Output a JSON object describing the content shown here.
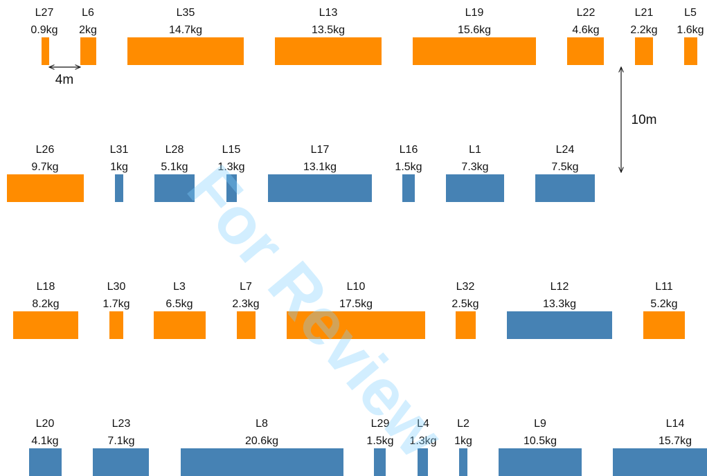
{
  "watermark": "For Review",
  "annotations": {
    "horizontal_spacing": "4m",
    "vertical_spacing": "10m"
  },
  "rows": [
    {
      "nodes": [
        {
          "label": "L27",
          "weight": "0.9kg",
          "color": "#ff8c00"
        },
        {
          "label": "L6",
          "weight": "2kg",
          "color": "#ff8c00"
        },
        {
          "label": "L35",
          "weight": "14.7kg",
          "color": "#ff8c00"
        },
        {
          "label": "L13",
          "weight": "13.5kg",
          "color": "#ff8c00"
        },
        {
          "label": "L19",
          "weight": "15.6kg",
          "color": "#ff8c00"
        },
        {
          "label": "L22",
          "weight": "4.6kg",
          "color": "#ff8c00"
        },
        {
          "label": "L21",
          "weight": "2.2kg",
          "color": "#ff8c00"
        },
        {
          "label": "L5",
          "weight": "1.6kg",
          "color": "#ff8c00"
        }
      ]
    },
    {
      "nodes": [
        {
          "label": "L26",
          "weight": "9.7kg",
          "color": "#ff8c00"
        },
        {
          "label": "L31",
          "weight": "1kg",
          "color": "#4682b4"
        },
        {
          "label": "L28",
          "weight": "5.1kg",
          "color": "#4682b4"
        },
        {
          "label": "L15",
          "weight": "1.3kg",
          "color": "#4682b4"
        },
        {
          "label": "L17",
          "weight": "13.1kg",
          "color": "#4682b4"
        },
        {
          "label": "L16",
          "weight": "1.5kg",
          "color": "#4682b4"
        },
        {
          "label": "L1",
          "weight": "7.3kg",
          "color": "#4682b4"
        },
        {
          "label": "L24",
          "weight": "7.5kg",
          "color": "#4682b4"
        }
      ]
    },
    {
      "nodes": [
        {
          "label": "L18",
          "weight": "8.2kg",
          "color": "#ff8c00"
        },
        {
          "label": "L30",
          "weight": "1.7kg",
          "color": "#ff8c00"
        },
        {
          "label": "L3",
          "weight": "6.5kg",
          "color": "#ff8c00"
        },
        {
          "label": "L7",
          "weight": "2.3kg",
          "color": "#ff8c00"
        },
        {
          "label": "L10",
          "weight": "17.5kg",
          "color": "#ff8c00"
        },
        {
          "label": "L32",
          "weight": "2.5kg",
          "color": "#ff8c00"
        },
        {
          "label": "L12",
          "weight": "13.3kg",
          "color": "#4682b4"
        },
        {
          "label": "L11",
          "weight": "5.2kg",
          "color": "#ff8c00"
        }
      ]
    },
    {
      "nodes": [
        {
          "label": "L20",
          "weight": "4.1kg",
          "color": "#4682b4"
        },
        {
          "label": "L23",
          "weight": "7.1kg",
          "color": "#4682b4"
        },
        {
          "label": "L8",
          "weight": "20.6kg",
          "color": "#4682b4"
        },
        {
          "label": "L29",
          "weight": "1.5kg",
          "color": "#4682b4"
        },
        {
          "label": "L4",
          "weight": "1.3kg",
          "color": "#4682b4"
        },
        {
          "label": "L2",
          "weight": "1kg",
          "color": "#4682b4"
        },
        {
          "label": "L9",
          "weight": "10.5kg",
          "color": "#4682b4"
        },
        {
          "label": "L14",
          "weight": "15.7kg",
          "color": "#4682b4"
        }
      ]
    }
  ]
}
